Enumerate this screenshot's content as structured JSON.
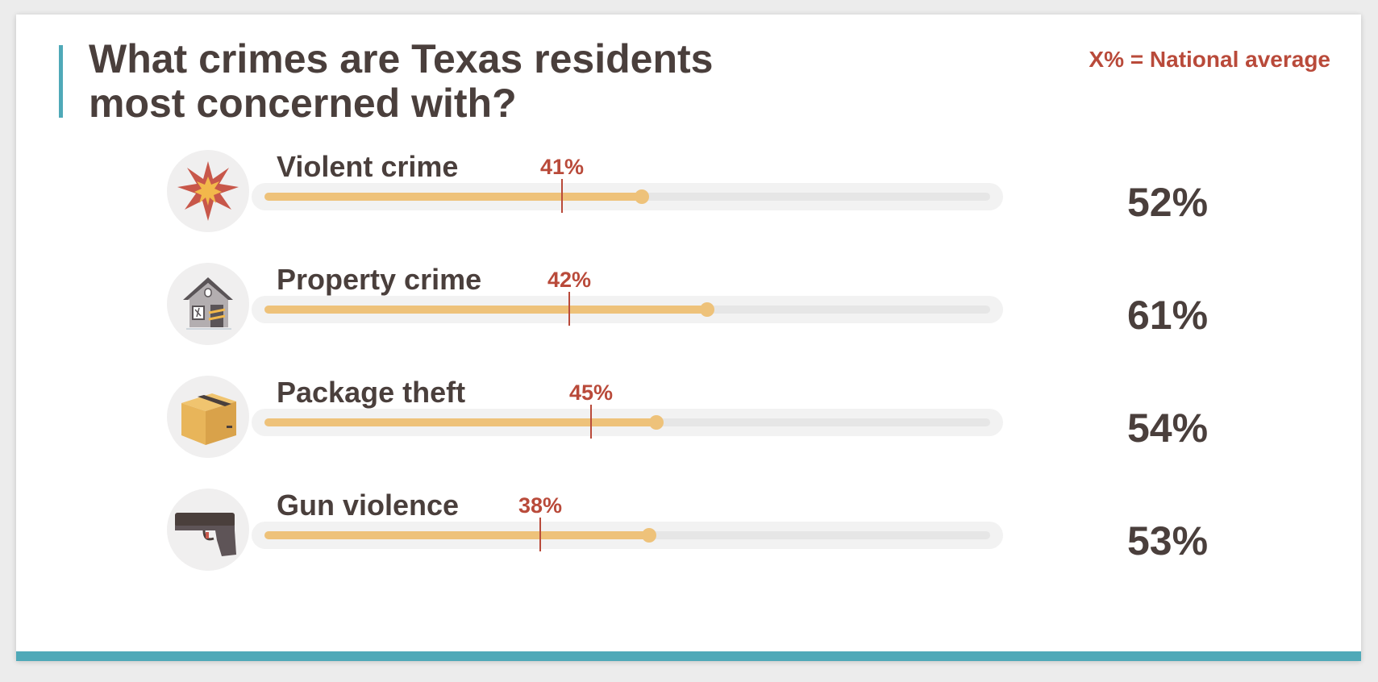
{
  "title": "What crimes are Texas residents most concerned with?",
  "legend": "X% = National average",
  "colors": {
    "accent": "#4fa9b8",
    "bar": "#eec27a",
    "track": "#e6e6e6",
    "track_outer": "#f2f2f2",
    "national": "#b94a3a",
    "text": "#4a3f3c"
  },
  "chart_data": {
    "type": "bar",
    "orientation": "horizontal",
    "xlim": [
      0,
      100
    ],
    "categories": [
      "Violent crime",
      "Property crime",
      "Package theft",
      "Gun violence"
    ],
    "values": [
      52,
      61,
      54,
      53
    ],
    "value_labels": [
      "52%",
      "61%",
      "54%",
      "53%"
    ],
    "national_average": [
      41,
      42,
      45,
      38
    ],
    "national_labels": [
      "41%",
      "42%",
      "45%",
      "38%"
    ],
    "icons": [
      "explosion-icon",
      "burglarized-house-icon",
      "package-box-icon",
      "handgun-icon"
    ]
  }
}
